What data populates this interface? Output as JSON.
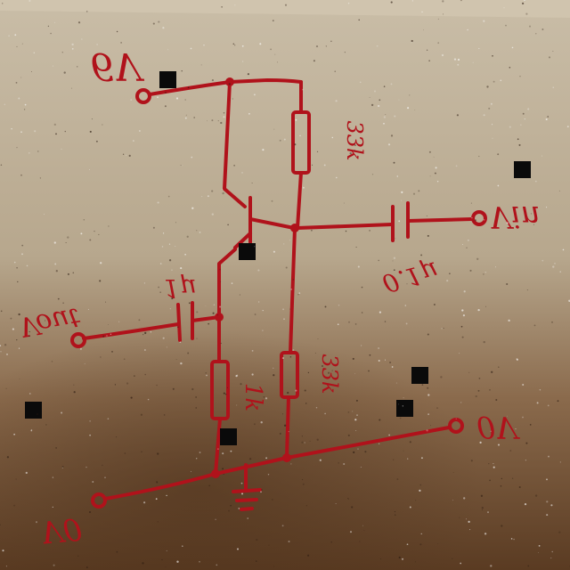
{
  "colors": {
    "ink": "#b0121b",
    "board_light": "#cbbfa8",
    "board_dark": "#5a3b22",
    "marker": "#0a0a0a"
  },
  "labels": {
    "supply_voltage": "6V",
    "collector_resistor": "33k",
    "base_resistor": "33k",
    "emitter_resistor": "1k",
    "input_capacitor": "0.1µ",
    "output_capacitor": "1µ",
    "v_in": "Vin",
    "v_out": "Vout",
    "ground_voltage": "0V",
    "v_zero": "V0"
  },
  "icons": {
    "transistor": "npn-transistor-icon",
    "ground": "ground-icon",
    "capacitor": "capacitor-icon",
    "resistor": "resistor-icon",
    "terminal": "terminal-icon"
  }
}
